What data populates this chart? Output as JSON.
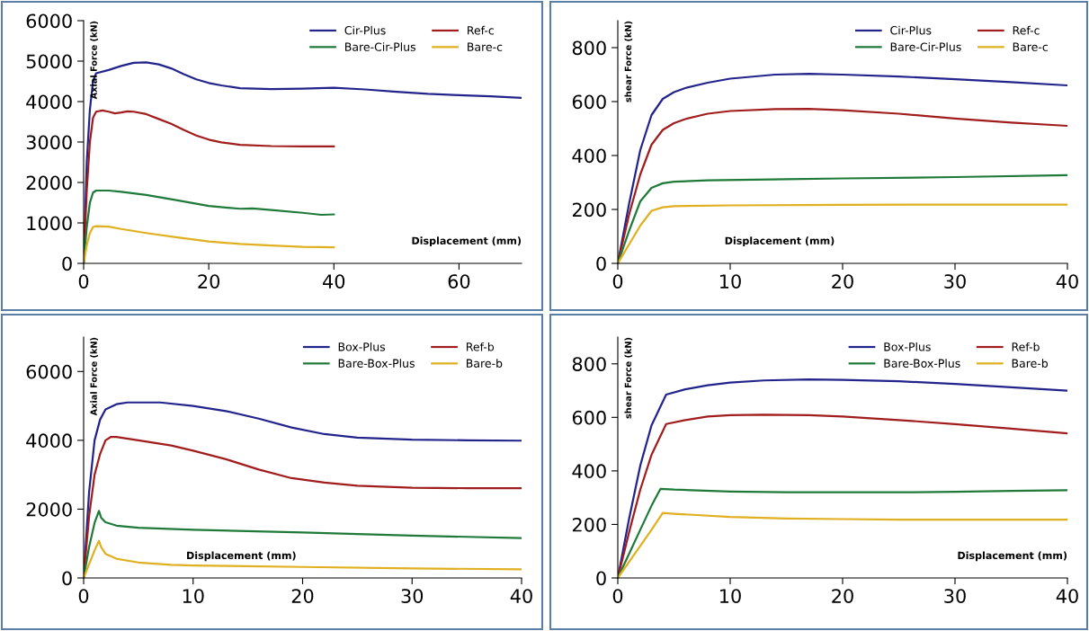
{
  "chart_data": [
    {
      "type": "line",
      "ylabel": "Axial Force (kN)",
      "xlabel": "Displacement (mm)",
      "xlim": [
        0,
        70
      ],
      "xticks": [
        0,
        20,
        40,
        60
      ],
      "ylim": [
        0,
        6000
      ],
      "yticks": [
        0,
        1000,
        2000,
        3000,
        4000,
        5000,
        6000
      ],
      "grid": false,
      "legend": "top right",
      "marker": "none",
      "line_style": "solid",
      "series": [
        {
          "name": "Cir-Plus",
          "color": "#23238c",
          "x": [
            0,
            0.5,
            1,
            1.5,
            2,
            4,
            6,
            8,
            10,
            12,
            14,
            16,
            18,
            20,
            22,
            25,
            30,
            35,
            40,
            45,
            50,
            55,
            60,
            65,
            70
          ],
          "values": [
            0,
            2500,
            3800,
            4500,
            4700,
            4780,
            4880,
            4960,
            4970,
            4920,
            4820,
            4680,
            4550,
            4460,
            4400,
            4330,
            4310,
            4320,
            4340,
            4300,
            4240,
            4190,
            4160,
            4130,
            4090
          ]
        },
        {
          "name": "Ref-c",
          "color": "#a11d1d",
          "x": [
            0,
            0.5,
            1,
            1.5,
            2,
            3,
            4,
            5,
            6,
            7,
            8,
            10,
            12,
            14,
            16,
            18,
            20,
            22,
            25,
            30,
            35,
            40
          ],
          "values": [
            0,
            1800,
            3000,
            3600,
            3750,
            3780,
            3750,
            3710,
            3730,
            3760,
            3750,
            3690,
            3570,
            3450,
            3300,
            3160,
            3060,
            2990,
            2930,
            2900,
            2890,
            2890
          ]
        },
        {
          "name": "Bare-Cir-Plus",
          "color": "#1f7a3a",
          "x": [
            0,
            0.5,
            1,
            1.5,
            2,
            4,
            6,
            10,
            15,
            20,
            25,
            27,
            30,
            35,
            38,
            40
          ],
          "values": [
            0,
            900,
            1500,
            1750,
            1800,
            1800,
            1770,
            1690,
            1560,
            1420,
            1350,
            1360,
            1320,
            1250,
            1200,
            1210
          ]
        },
        {
          "name": "Bare-c",
          "color": "#e0b020",
          "x": [
            0,
            0.5,
            1,
            1.5,
            2,
            4,
            6,
            10,
            15,
            20,
            25,
            30,
            35,
            40
          ],
          "values": [
            0,
            450,
            750,
            900,
            920,
            910,
            850,
            750,
            640,
            540,
            480,
            440,
            410,
            400
          ]
        }
      ]
    },
    {
      "type": "line",
      "ylabel": "shear Force (kN)",
      "xlabel": "Displacement (mm)",
      "xlim": [
        0,
        40
      ],
      "xticks": [
        0,
        10,
        20,
        30,
        40
      ],
      "ylim": [
        0,
        900
      ],
      "yticks": [
        0,
        200,
        400,
        600,
        800
      ],
      "grid": false,
      "legend": "top right",
      "marker": "none",
      "line_style": "solid",
      "series": [
        {
          "name": "Cir-Plus",
          "color": "#23238c",
          "x": [
            0,
            1,
            2,
            3,
            4,
            5,
            6,
            8,
            10,
            14,
            17,
            20,
            25,
            30,
            35,
            40
          ],
          "values": [
            0,
            220,
            420,
            550,
            610,
            635,
            650,
            670,
            685,
            700,
            703,
            700,
            693,
            683,
            672,
            660
          ]
        },
        {
          "name": "Ref-c",
          "color": "#a11d1d",
          "x": [
            0,
            1,
            2,
            3,
            4,
            5,
            6,
            8,
            10,
            14,
            17,
            20,
            25,
            30,
            35,
            40
          ],
          "values": [
            0,
            180,
            330,
            440,
            495,
            520,
            535,
            555,
            565,
            572,
            573,
            568,
            555,
            537,
            522,
            510
          ]
        },
        {
          "name": "Bare-Cir-Plus",
          "color": "#1f7a3a",
          "x": [
            0,
            1,
            2,
            3,
            4,
            5,
            8,
            15,
            20,
            30,
            40
          ],
          "values": [
            0,
            120,
            230,
            280,
            297,
            303,
            308,
            312,
            315,
            320,
            327
          ]
        },
        {
          "name": "Bare-c",
          "color": "#e0b020",
          "x": [
            0,
            1,
            2,
            3,
            4,
            5,
            10,
            20,
            30,
            40
          ],
          "values": [
            0,
            70,
            140,
            195,
            208,
            212,
            215,
            217,
            218,
            218
          ]
        }
      ]
    },
    {
      "type": "line",
      "ylabel": "Axial Force (kN)",
      "xlabel": "Displacement (mm)",
      "xlim": [
        0,
        40
      ],
      "xticks": [
        0,
        10,
        20,
        30,
        40
      ],
      "ylim": [
        0,
        7000
      ],
      "yticks": [
        0,
        2000,
        4000,
        6000
      ],
      "grid": false,
      "legend": "top right",
      "marker": "none",
      "line_style": "solid",
      "series": [
        {
          "name": "Box-Plus",
          "color": "#23238c",
          "x": [
            0,
            0.5,
            1,
            1.5,
            2,
            3,
            4,
            7,
            10,
            13,
            16,
            19,
            22,
            25,
            30,
            35,
            40
          ],
          "values": [
            0,
            2500,
            4000,
            4600,
            4900,
            5050,
            5100,
            5100,
            5000,
            4850,
            4630,
            4370,
            4180,
            4080,
            4020,
            4000,
            3990
          ]
        },
        {
          "name": "Ref-b",
          "color": "#a11d1d",
          "x": [
            0,
            0.5,
            1,
            1.5,
            2,
            2.5,
            3,
            5,
            8,
            10,
            13,
            16,
            19,
            22,
            25,
            30,
            35,
            40
          ],
          "values": [
            0,
            1800,
            3000,
            3600,
            4000,
            4100,
            4100,
            4000,
            3850,
            3700,
            3450,
            3150,
            2900,
            2770,
            2680,
            2620,
            2610,
            2610
          ]
        },
        {
          "name": "Bare-Box-Plus",
          "color": "#1f7a3a",
          "x": [
            0,
            0.5,
            1,
            1.4,
            1.6,
            2,
            3,
            5,
            10,
            20,
            30,
            40
          ],
          "values": [
            0,
            900,
            1600,
            1950,
            1750,
            1620,
            1520,
            1460,
            1400,
            1320,
            1230,
            1160
          ]
        },
        {
          "name": "Bare-b",
          "color": "#e0b020",
          "x": [
            0,
            0.5,
            1,
            1.4,
            1.6,
            2,
            3,
            5,
            8,
            10,
            20,
            30,
            40
          ],
          "values": [
            0,
            400,
            800,
            1080,
            900,
            700,
            560,
            450,
            380,
            360,
            320,
            280,
            250
          ]
        }
      ]
    },
    {
      "type": "line",
      "ylabel": "shear Force (kN)",
      "xlabel": "Displacement (mm)",
      "xlim": [
        0,
        40
      ],
      "xticks": [
        0,
        10,
        20,
        30,
        40
      ],
      "ylim": [
        0,
        900
      ],
      "yticks": [
        0,
        200,
        400,
        600,
        800
      ],
      "grid": false,
      "legend": "top right",
      "marker": "none",
      "line_style": "solid",
      "series": [
        {
          "name": "Box-Plus",
          "color": "#23238c",
          "x": [
            0,
            1,
            2,
            3,
            4.3,
            6,
            8,
            10,
            13,
            17,
            20,
            25,
            30,
            35,
            40
          ],
          "values": [
            0,
            220,
            420,
            570,
            685,
            705,
            720,
            730,
            738,
            742,
            740,
            735,
            725,
            712,
            700
          ]
        },
        {
          "name": "Ref-b",
          "color": "#a11d1d",
          "x": [
            0,
            1,
            2,
            3,
            4.3,
            6,
            8,
            10,
            13,
            17,
            20,
            25,
            30,
            35,
            40
          ],
          "values": [
            0,
            170,
            330,
            460,
            575,
            590,
            603,
            608,
            610,
            608,
            603,
            590,
            575,
            558,
            540
          ]
        },
        {
          "name": "Bare-Box-Plus",
          "color": "#1f7a3a",
          "x": [
            0,
            1,
            2,
            3,
            3.8,
            5,
            10,
            15,
            20,
            25,
            30,
            35,
            40
          ],
          "values": [
            0,
            90,
            180,
            270,
            333,
            330,
            323,
            320,
            320,
            320,
            322,
            325,
            328
          ]
        },
        {
          "name": "Bare-b",
          "color": "#e0b020",
          "x": [
            0,
            1,
            2,
            3,
            4,
            5,
            10,
            15,
            20,
            25,
            30,
            35,
            40
          ],
          "values": [
            0,
            60,
            120,
            180,
            243,
            240,
            228,
            222,
            220,
            218,
            218,
            218,
            218
          ]
        }
      ]
    }
  ]
}
